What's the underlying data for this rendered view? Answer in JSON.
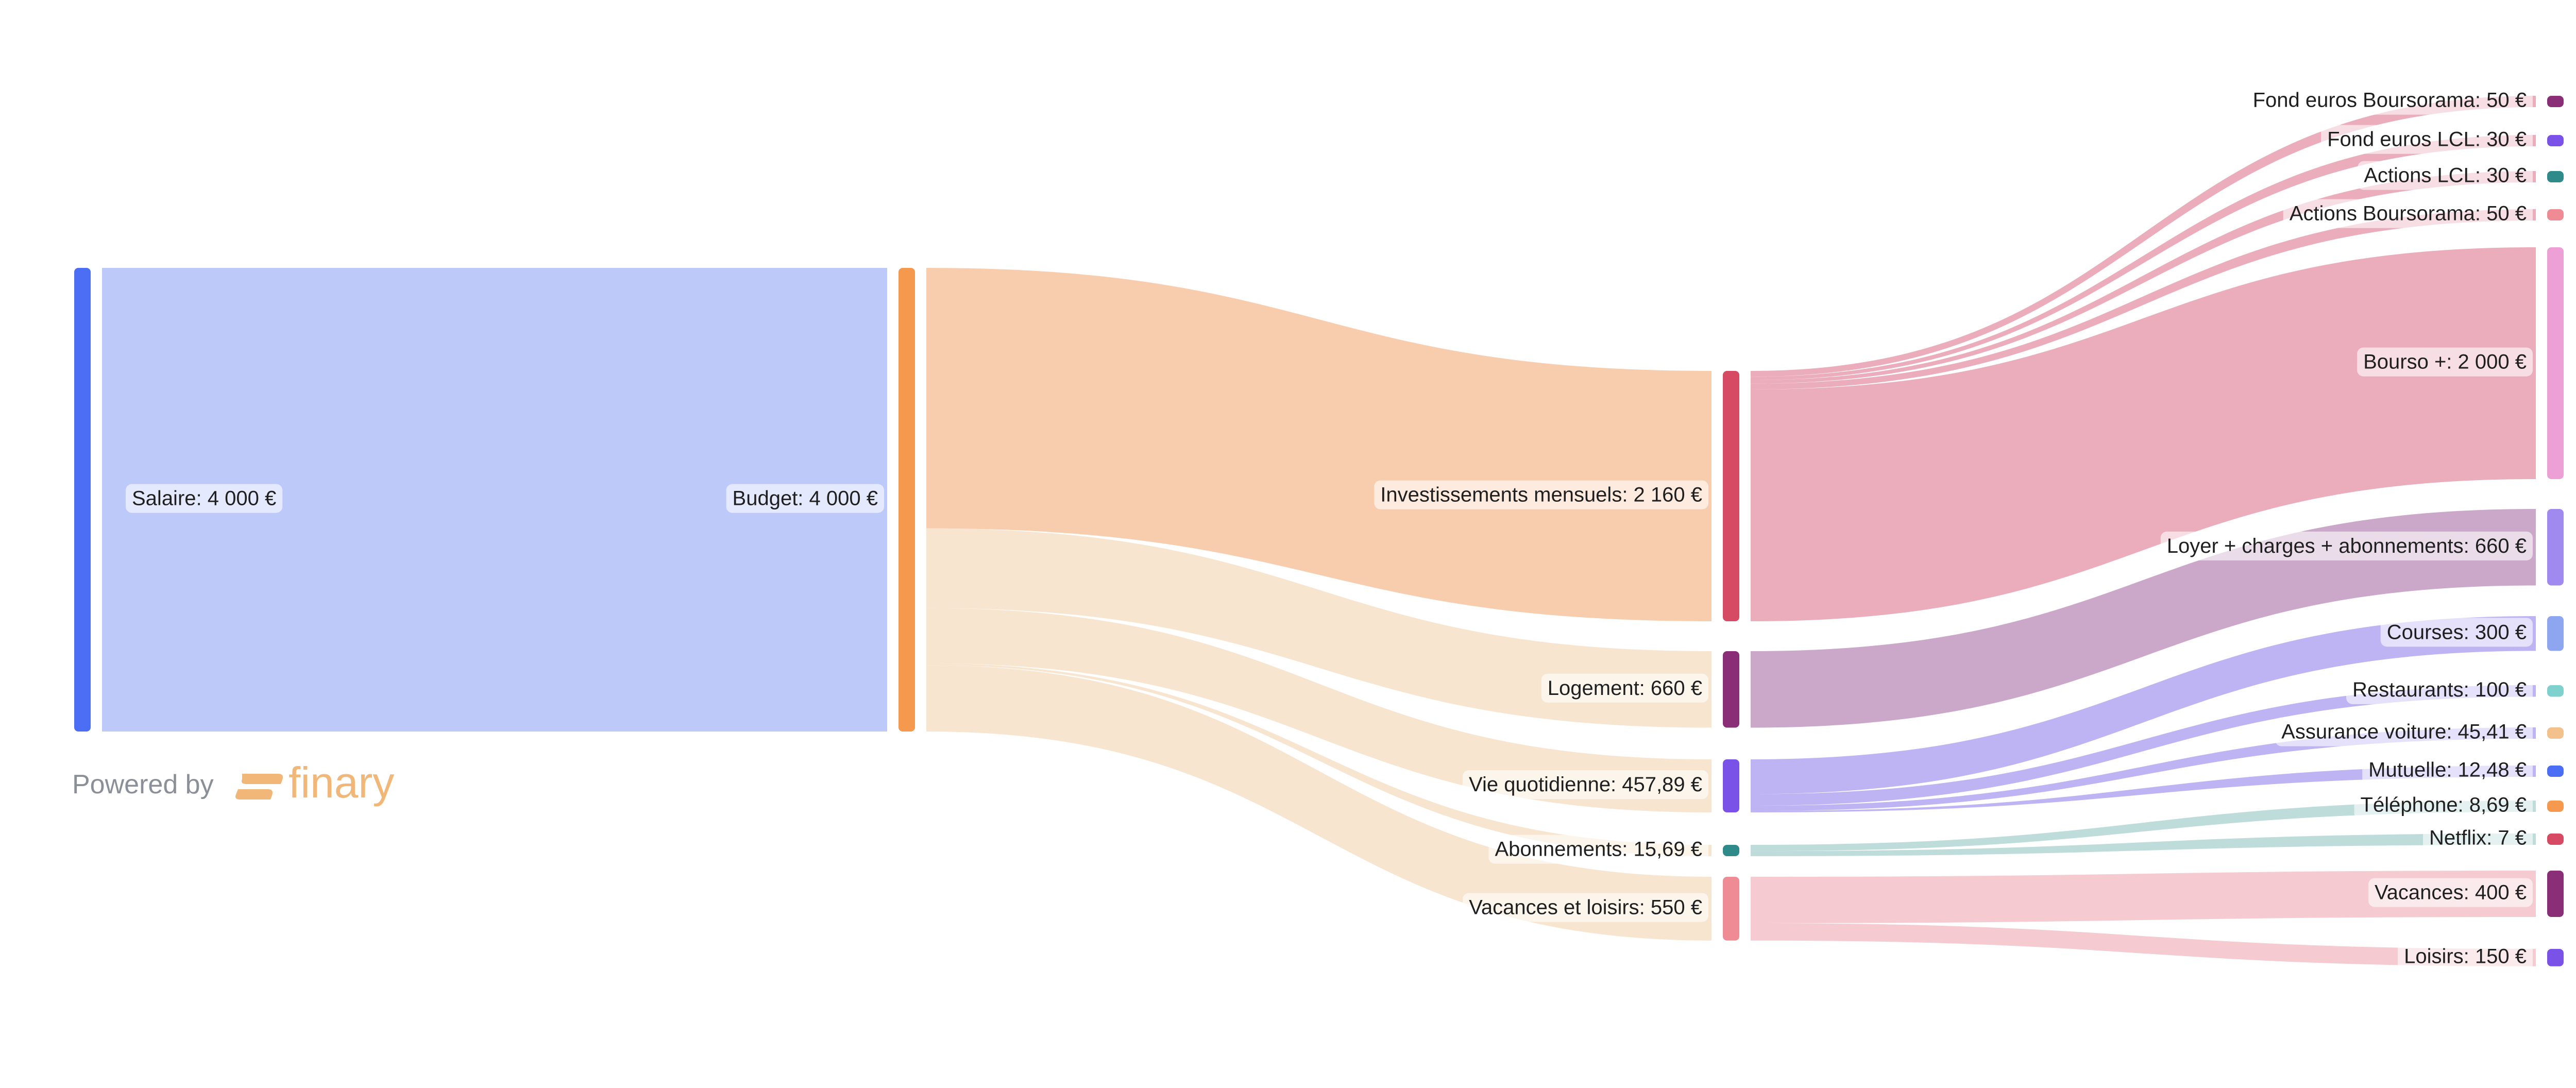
{
  "chart_data": {
    "type": "sankey",
    "unit": "€",
    "nodes": [
      {
        "id": "salaire",
        "label": "Salaire: 4 000 €",
        "value": 4000,
        "column": 0,
        "color": "#4b6ef5"
      },
      {
        "id": "budget",
        "label": "Budget: 4 000 €",
        "value": 4000,
        "column": 1,
        "color": "#f4994e"
      },
      {
        "id": "invest",
        "label": "Investissements mensuels: 2 160 €",
        "value": 2160,
        "column": 2,
        "color": "#d74a63"
      },
      {
        "id": "logement",
        "label": "Logement: 660 €",
        "value": 660,
        "column": 2,
        "color": "#8a2f77"
      },
      {
        "id": "vie",
        "label": "Vie quotidienne: 457,89 €",
        "value": 457.89,
        "column": 2,
        "color": "#7a52e8"
      },
      {
        "id": "abonnements",
        "label": "Abonnements: 15,69 €",
        "value": 15.69,
        "column": 2,
        "color": "#2f8a8a"
      },
      {
        "id": "vacloisirs",
        "label": "Vacances et loisirs: 550 €",
        "value": 550,
        "column": 2,
        "color": "#ee8b94"
      },
      {
        "id": "fond_bourso",
        "label": "Fond euros Boursorama: 50 €",
        "value": 50,
        "column": 3,
        "color": "#8a2f77"
      },
      {
        "id": "fond_lcl",
        "label": "Fond euros LCL: 30 €",
        "value": 30,
        "column": 3,
        "color": "#7a52e8"
      },
      {
        "id": "actions_lcl",
        "label": "Actions LCL: 30 €",
        "value": 30,
        "column": 3,
        "color": "#2f8a8a"
      },
      {
        "id": "actions_bourso",
        "label": "Actions Boursorama: 50 €",
        "value": 50,
        "column": 3,
        "color": "#ee8b94"
      },
      {
        "id": "bourso_plus",
        "label": "Bourso +: 2 000 €",
        "value": 2000,
        "column": 3,
        "color": "#eca0d6"
      },
      {
        "id": "loyer",
        "label": "Loyer + charges + abonnements: 660 €",
        "value": 660,
        "column": 3,
        "color": "#a08af0"
      },
      {
        "id": "courses",
        "label": "Courses: 300 €",
        "value": 300,
        "column": 3,
        "color": "#8ea6ef"
      },
      {
        "id": "restaurants",
        "label": "Restaurants: 100 €",
        "value": 100,
        "column": 3,
        "color": "#7fd1cd"
      },
      {
        "id": "assurance",
        "label": "Assurance voiture: 45,41 €",
        "value": 45.41,
        "column": 3,
        "color": "#f2c18c"
      },
      {
        "id": "mutuelle",
        "label": "Mutuelle: 12,48 €",
        "value": 12.48,
        "column": 3,
        "color": "#4b6ef5"
      },
      {
        "id": "telephone",
        "label": "Téléphone: 8,69 €",
        "value": 8.69,
        "column": 3,
        "color": "#f4994e"
      },
      {
        "id": "netflix",
        "label": "Netflix: 7 €",
        "value": 7,
        "column": 3,
        "color": "#d74a63"
      },
      {
        "id": "vacances",
        "label": "Vacances: 400 €",
        "value": 400,
        "column": 3,
        "color": "#8a2f77"
      },
      {
        "id": "loisirs",
        "label": "Loisirs: 150 €",
        "value": 150,
        "column": 3,
        "color": "#7a52e8"
      }
    ],
    "links": [
      {
        "source": "salaire",
        "target": "budget",
        "value": 4000
      },
      {
        "source": "budget",
        "target": "invest",
        "value": 2160
      },
      {
        "source": "budget",
        "target": "logement",
        "value": 660
      },
      {
        "source": "budget",
        "target": "vie",
        "value": 457.89
      },
      {
        "source": "budget",
        "target": "abonnements",
        "value": 15.69
      },
      {
        "source": "budget",
        "target": "vacloisirs",
        "value": 550
      },
      {
        "source": "invest",
        "target": "fond_bourso",
        "value": 50
      },
      {
        "source": "invest",
        "target": "fond_lcl",
        "value": 30
      },
      {
        "source": "invest",
        "target": "actions_lcl",
        "value": 30
      },
      {
        "source": "invest",
        "target": "actions_bourso",
        "value": 50
      },
      {
        "source": "invest",
        "target": "bourso_plus",
        "value": 2000
      },
      {
        "source": "logement",
        "target": "loyer",
        "value": 660
      },
      {
        "source": "vie",
        "target": "courses",
        "value": 300
      },
      {
        "source": "vie",
        "target": "restaurants",
        "value": 100
      },
      {
        "source": "vie",
        "target": "assurance",
        "value": 45.41
      },
      {
        "source": "vie",
        "target": "mutuelle",
        "value": 12.48
      },
      {
        "source": "abonnements",
        "target": "telephone",
        "value": 8.69
      },
      {
        "source": "abonnements",
        "target": "netflix",
        "value": 7
      },
      {
        "source": "vacloisirs",
        "target": "vacances",
        "value": 400
      },
      {
        "source": "vacloisirs",
        "target": "loisirs",
        "value": 150
      }
    ]
  },
  "branding": {
    "powered_by": "Powered by",
    "brand_name": "finary",
    "brand_color": "#f0b779"
  }
}
